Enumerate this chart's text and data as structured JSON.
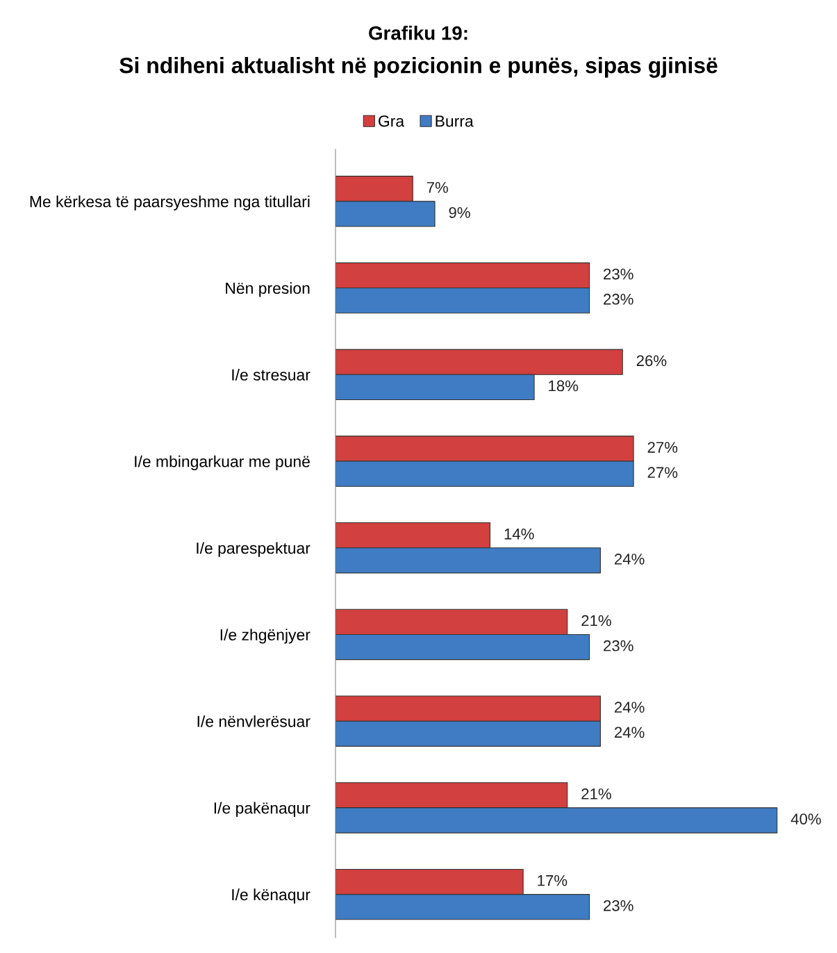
{
  "chart_data": {
    "type": "bar",
    "orientation": "horizontal",
    "title": "Grafiku 19:\nSi ndiheni aktualisht në pozicionin e punës, sipas gjinisë",
    "categories": [
      "Me kërkesa të paarsyeshme nga titullari",
      "Nën presion",
      "I/e stresuar",
      "I/e mbingarkuar me punë",
      "I/e parespektuar",
      "I/e zhgënjyer",
      "I/e nënvlerësuar",
      "I/e pakënaqur",
      "I/e kënaqur"
    ],
    "series": [
      {
        "name": "Gra",
        "color": "#d2403f",
        "values": [
          7,
          23,
          26,
          27,
          14,
          21,
          24,
          21,
          17
        ],
        "value_labels": [
          "7%",
          "23%",
          "26%",
          "27%",
          "14%",
          "21%",
          "24%",
          "21%",
          "17%"
        ]
      },
      {
        "name": "Burra",
        "color": "#3f7cc4",
        "values": [
          9,
          23,
          18,
          27,
          24,
          23,
          24,
          40,
          23
        ],
        "value_labels": [
          "9%",
          "23%",
          "18%",
          "27%",
          "24%",
          "23%",
          "24%",
          "40%",
          "23%"
        ]
      }
    ],
    "legend": "top",
    "grid": false
  }
}
